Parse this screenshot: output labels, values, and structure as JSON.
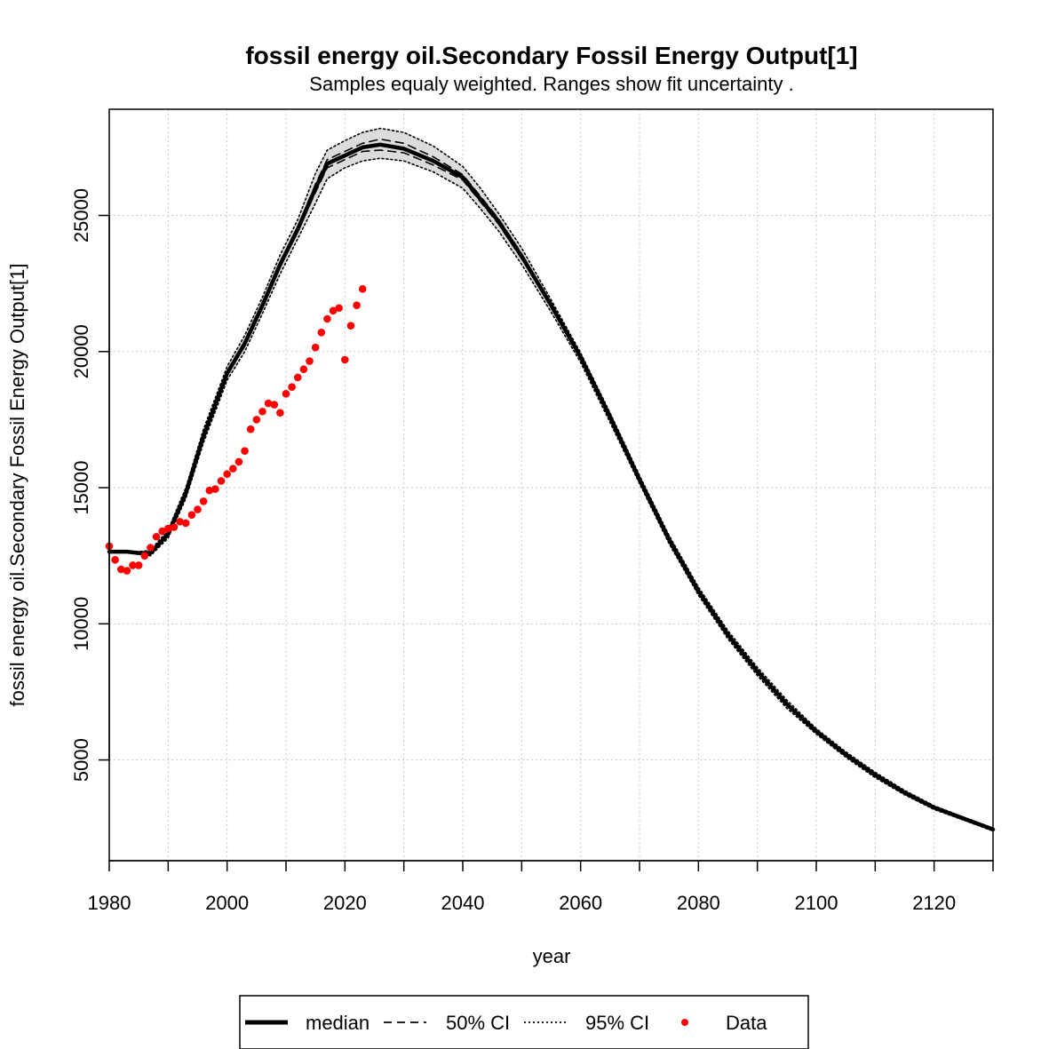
{
  "chart_data": {
    "type": "line",
    "title": "fossil energy oil.Secondary Fossil Energy Output[1]",
    "subtitle": "Samples equaly weighted. Ranges show  fit uncertainty .",
    "xlabel": "year",
    "ylabel": "fossil energy oil.Secondary Fossil Energy Output[1]",
    "xlim": [
      1980,
      2130
    ],
    "ylim": [
      1300,
      28900
    ],
    "x_ticks": [
      1980,
      2000,
      2020,
      2040,
      2060,
      2080,
      2100,
      2120
    ],
    "x_minor_ticks": [
      1990,
      2010,
      2030,
      2050,
      2070,
      2090,
      2110,
      2130
    ],
    "x_tick_labels": [
      "1980",
      "2000",
      "2020",
      "2040",
      "2060",
      "2080",
      "2100",
      "2120"
    ],
    "y_ticks": [
      5000,
      10000,
      15000,
      20000,
      25000
    ],
    "y_tick_labels": [
      "5000",
      "10000",
      "15000",
      "20000",
      "25000"
    ],
    "grid": true,
    "legend_position": "bottom",
    "legend": [
      "median",
      "50% CI",
      "95% CI",
      "Data"
    ],
    "colors": {
      "median": "#000000",
      "ci50": "#000000",
      "ci95": "#000000",
      "band": "#dcdcdc",
      "data": "#ff0000"
    },
    "series": [
      {
        "name": "median",
        "x": [
          1980,
          1983,
          1985,
          1987,
          1990,
          1993,
          1996,
          2000,
          2003,
          2006,
          2009,
          2012,
          2015,
          2017,
          2020,
          2023,
          2026,
          2030,
          2035,
          2040,
          2043,
          2046,
          2050,
          2055,
          2060,
          2065,
          2070,
          2075,
          2080,
          2085,
          2090,
          2095,
          2100,
          2105,
          2110,
          2115,
          2120,
          2125,
          2130
        ],
        "y": [
          12650,
          12650,
          12600,
          12600,
          13300,
          14800,
          16900,
          19200,
          20300,
          21700,
          23200,
          24500,
          26000,
          26900,
          27200,
          27500,
          27600,
          27450,
          27000,
          26400,
          25600,
          24800,
          23500,
          21700,
          19800,
          17600,
          15300,
          13100,
          11200,
          9600,
          8250,
          7050,
          6050,
          5200,
          4450,
          3800,
          3250,
          2850,
          2450
        ]
      },
      {
        "name": "50% CI upper",
        "x": [
          1980,
          1983,
          1985,
          1987,
          1990,
          1993,
          1996,
          2000,
          2003,
          2006,
          2009,
          2012,
          2015,
          2017,
          2020,
          2023,
          2026,
          2030,
          2035,
          2040,
          2043,
          2046,
          2050,
          2055,
          2060,
          2065,
          2070,
          2075,
          2080,
          2085,
          2090,
          2095,
          2100,
          2105,
          2110,
          2115,
          2120,
          2125,
          2130
        ],
        "y": [
          12660,
          12660,
          12620,
          12640,
          13350,
          14850,
          16950,
          19250,
          20400,
          21800,
          23300,
          24600,
          26150,
          27050,
          27350,
          27650,
          27800,
          27650,
          27150,
          26500,
          25700,
          24900,
          23600,
          21750,
          19850,
          17650,
          15350,
          13150,
          11250,
          9650,
          8300,
          7100,
          6080,
          5230,
          4480,
          3830,
          3280,
          2870,
          2470
        ]
      },
      {
        "name": "50% CI lower",
        "x": [
          1980,
          1983,
          1985,
          1987,
          1990,
          1993,
          1996,
          2000,
          2003,
          2006,
          2009,
          2012,
          2015,
          2017,
          2020,
          2023,
          2026,
          2030,
          2035,
          2040,
          2043,
          2046,
          2050,
          2055,
          2060,
          2065,
          2070,
          2075,
          2080,
          2085,
          2090,
          2095,
          2100,
          2105,
          2110,
          2115,
          2120,
          2125,
          2130
        ],
        "y": [
          12640,
          12640,
          12580,
          12560,
          13250,
          14750,
          16850,
          19150,
          20200,
          21600,
          23100,
          24400,
          25850,
          26750,
          27050,
          27350,
          27400,
          27300,
          26850,
          26300,
          25500,
          24700,
          23400,
          21650,
          19750,
          17550,
          15250,
          13050,
          11150,
          9550,
          8200,
          7000,
          6020,
          5170,
          4420,
          3770,
          3220,
          2830,
          2430
        ]
      },
      {
        "name": "95% CI upper",
        "x": [
          1980,
          1983,
          1985,
          1987,
          1990,
          1993,
          1996,
          2000,
          2003,
          2006,
          2009,
          2012,
          2015,
          2017,
          2020,
          2023,
          2026,
          2030,
          2035,
          2040,
          2043,
          2046,
          2050,
          2055,
          2060,
          2065,
          2070,
          2075,
          2080,
          2085,
          2090,
          2095,
          2100,
          2105,
          2110,
          2115,
          2120,
          2125,
          2130
        ],
        "y": [
          12680,
          12680,
          12650,
          12700,
          13450,
          15000,
          17150,
          19450,
          20600,
          22000,
          23550,
          24850,
          26550,
          27400,
          27750,
          28050,
          28200,
          28050,
          27550,
          26800,
          26000,
          25100,
          23800,
          21900,
          19950,
          17750,
          15450,
          13250,
          11350,
          9750,
          8400,
          7200,
          6150,
          5300,
          4550,
          3880,
          3320,
          2900,
          2500
        ]
      },
      {
        "name": "95% CI lower",
        "x": [
          1980,
          1983,
          1985,
          1987,
          1990,
          1993,
          1996,
          2000,
          2003,
          2006,
          2009,
          2012,
          2015,
          2017,
          2020,
          2023,
          2026,
          2030,
          2035,
          2040,
          2043,
          2046,
          2050,
          2055,
          2060,
          2065,
          2070,
          2075,
          2080,
          2085,
          2090,
          2095,
          2100,
          2105,
          2110,
          2115,
          2120,
          2125,
          2130
        ],
        "y": [
          12620,
          12620,
          12550,
          12500,
          13150,
          14600,
          16650,
          18950,
          20000,
          21400,
          22850,
          24150,
          25450,
          26350,
          26750,
          27000,
          27100,
          27000,
          26600,
          26000,
          25250,
          24450,
          23200,
          21450,
          19600,
          17400,
          15150,
          12950,
          11050,
          9450,
          8100,
          6900,
          5950,
          5100,
          4350,
          3720,
          3180,
          2790,
          2390
        ]
      },
      {
        "name": "Data",
        "x": [
          1980,
          1981,
          1982,
          1983,
          1984,
          1985,
          1986,
          1987,
          1988,
          1989,
          1990,
          1991,
          1992,
          1993,
          1994,
          1995,
          1996,
          1997,
          1998,
          1999,
          2000,
          2001,
          2002,
          2003,
          2004,
          2005,
          2006,
          2007,
          2008,
          2009,
          2010,
          2011,
          2012,
          2013,
          2014,
          2015,
          2016,
          2017,
          2018,
          2019,
          2020,
          2021,
          2022,
          2023
        ],
        "y": [
          12850,
          12350,
          12000,
          11950,
          12150,
          12150,
          12500,
          12800,
          13200,
          13400,
          13500,
          13550,
          13750,
          13700,
          14000,
          14200,
          14500,
          14900,
          14950,
          15250,
          15500,
          15700,
          15950,
          16350,
          17150,
          17500,
          17800,
          18100,
          18050,
          17750,
          18450,
          18700,
          19050,
          19350,
          19650,
          20150,
          20700,
          21200,
          21500,
          21600,
          19700,
          20950,
          21700,
          22300
        ]
      }
    ]
  }
}
